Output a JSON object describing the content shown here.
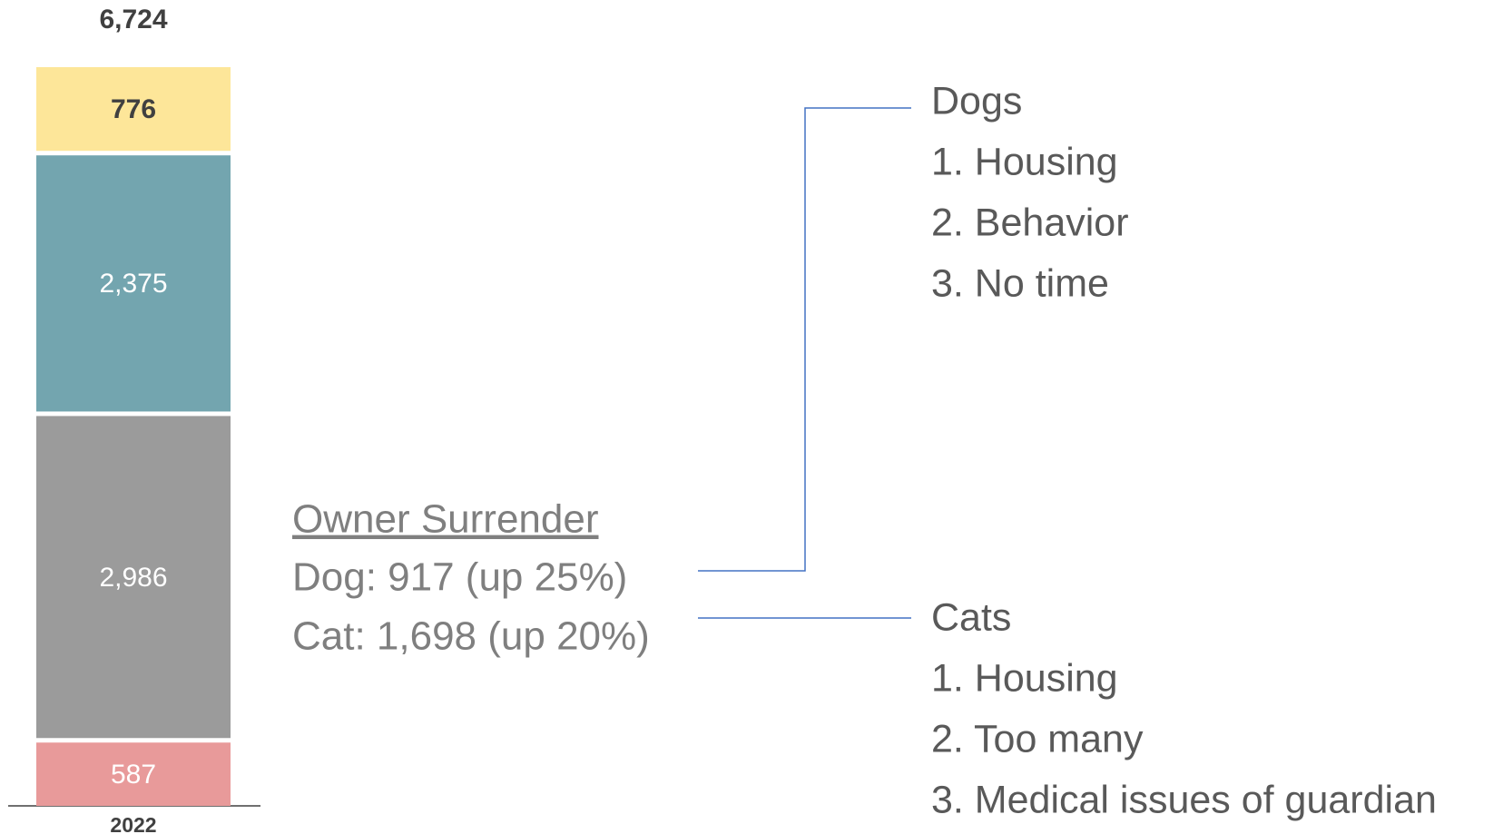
{
  "chart_data": {
    "type": "stacked-bar",
    "categories": [
      "2022"
    ],
    "series": [
      {
        "color": "#e89a9a",
        "label_color": "#ffffff",
        "values": [
          587
        ]
      },
      {
        "color": "#9b9b9b",
        "label_color": "#ffffff",
        "values": [
          2986
        ],
        "value_labels": [
          "2,986"
        ]
      },
      {
        "color": "#73a5af",
        "label_color": "#ffffff",
        "values": [
          2375
        ],
        "value_labels": [
          "2,375"
        ]
      },
      {
        "color": "#fde699",
        "label_color": "#404040",
        "values": [
          776
        ]
      }
    ],
    "total": 6724,
    "total_label": "6,724",
    "annotations": {
      "summary": {
        "heading": "Owner Surrender",
        "lines": [
          "Dog: 917 (up 25%)",
          "Cat: 1,698 (up 20%)"
        ]
      },
      "dogs": {
        "heading": "Dogs",
        "items": [
          "1. Housing",
          "2. Behavior",
          "3. No time"
        ]
      },
      "cats": {
        "heading": "Cats",
        "items": [
          "1. Housing",
          "2. Too many",
          "3. Medical issues of guardian"
        ]
      }
    }
  }
}
